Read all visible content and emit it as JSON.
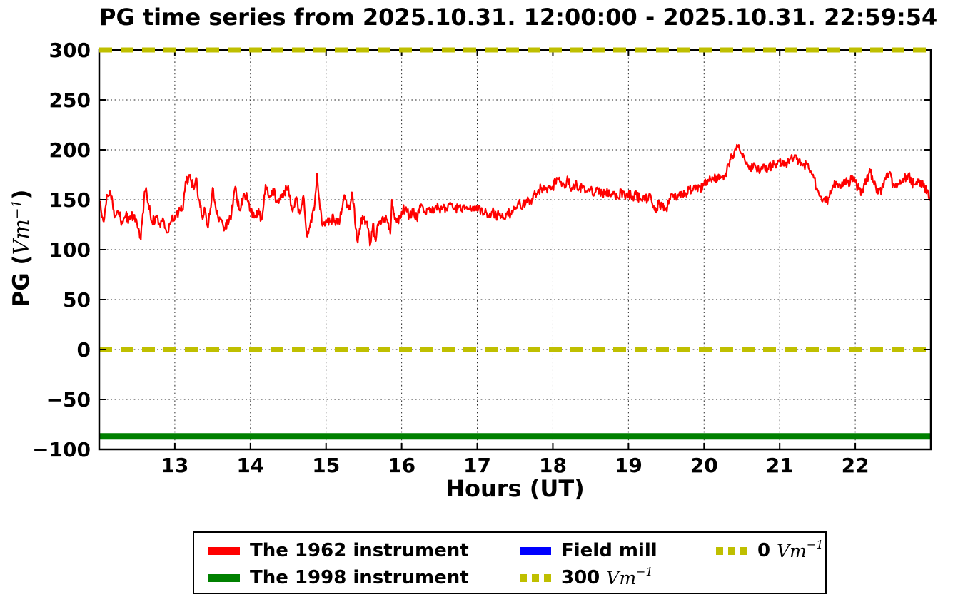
{
  "figure": {
    "title": "PG time series from 2025.10.31. 12:00:00 - 2025.10.31. 22:59:54",
    "background": "#ffffff"
  },
  "axes": {
    "xlabel": "Hours (UT)",
    "ylabel": {
      "prefix": "PG (",
      "unit": "Vm",
      "exponent": "−1",
      "suffix": ")"
    },
    "xticks": {
      "values": [
        13,
        14,
        15,
        16,
        17,
        18,
        19,
        20,
        21,
        22
      ],
      "labels": [
        "13",
        "14",
        "15",
        "16",
        "17",
        "18",
        "19",
        "20",
        "21",
        "22"
      ]
    },
    "yticks": {
      "values": [
        300,
        250,
        200,
        150,
        100,
        50,
        0,
        -50,
        -100
      ],
      "labels": [
        "300",
        "250",
        "200",
        "150",
        "100",
        "50",
        "0",
        "−50",
        "−100"
      ]
    },
    "grid_style": "dotted"
  },
  "legend": {
    "columns": 3,
    "items": [
      {
        "label": "The 1962 instrument",
        "color": "#ff0000",
        "style": "solid"
      },
      {
        "label": "The 1998 instrument",
        "color": "#008000",
        "style": "solid"
      },
      {
        "label": "Field mill",
        "color": "#0000ff",
        "style": "solid"
      },
      {
        "label": "300",
        "unit": "Vm",
        "exponent": "−1",
        "color": "#bfbf00",
        "style": "dashed"
      },
      {
        "label": "0",
        "unit": "Vm",
        "exponent": "−1",
        "color": "#bfbf00",
        "style": "dashed"
      }
    ]
  },
  "chart_data": {
    "type": "line",
    "title": "PG time series from 2025.10.31. 12:00:00 - 2025.10.31. 22:59:54",
    "xlabel": "Hours (UT)",
    "ylabel": "PG (Vm⁻¹)",
    "xlim": [
      12,
      23
    ],
    "ylim": [
      -100,
      300
    ],
    "grid": true,
    "legend_position": "below",
    "series": [
      {
        "name": "The 1962 instrument",
        "color": "#ff0000",
        "style": "solid",
        "linewidth": 2.2,
        "noise_amplitude": 5,
        "x": [
          12.0,
          12.03,
          12.06,
          12.1,
          12.15,
          12.2,
          12.25,
          12.3,
          12.35,
          12.4,
          12.45,
          12.5,
          12.53,
          12.55,
          12.6,
          12.62,
          12.65,
          12.7,
          12.75,
          12.8,
          12.85,
          12.9,
          12.95,
          13.0,
          13.05,
          13.1,
          13.15,
          13.2,
          13.25,
          13.28,
          13.32,
          13.36,
          13.4,
          13.44,
          13.5,
          13.55,
          13.6,
          13.65,
          13.7,
          13.75,
          13.8,
          13.85,
          13.9,
          13.95,
          14.0,
          14.05,
          14.1,
          14.15,
          14.2,
          14.25,
          14.3,
          14.35,
          14.4,
          14.45,
          14.5,
          14.55,
          14.6,
          14.65,
          14.7,
          14.75,
          14.8,
          14.85,
          14.88,
          14.92,
          14.96,
          15.0,
          15.05,
          15.1,
          15.15,
          15.2,
          15.25,
          15.3,
          15.35,
          15.4,
          15.42,
          15.46,
          15.5,
          15.55,
          15.58,
          15.62,
          15.65,
          15.7,
          15.75,
          15.8,
          15.85,
          15.87,
          15.9,
          15.95,
          16.0,
          16.05,
          16.1,
          16.15,
          16.2,
          16.25,
          16.3,
          16.35,
          16.4,
          16.45,
          16.5,
          16.55,
          16.6,
          16.65,
          16.7,
          16.75,
          16.8,
          16.85,
          16.9,
          16.95,
          17.0,
          17.05,
          17.1,
          17.15,
          17.2,
          17.25,
          17.3,
          17.35,
          17.4,
          17.45,
          17.5,
          17.55,
          17.6,
          17.65,
          17.7,
          17.75,
          17.8,
          17.85,
          17.9,
          17.95,
          18.0,
          18.05,
          18.1,
          18.15,
          18.2,
          18.25,
          18.3,
          18.35,
          18.4,
          18.45,
          18.5,
          18.55,
          18.6,
          18.65,
          18.7,
          18.75,
          18.8,
          18.85,
          18.9,
          18.95,
          19.0,
          19.05,
          19.1,
          19.15,
          19.2,
          19.25,
          19.3,
          19.35,
          19.4,
          19.45,
          19.5,
          19.55,
          19.6,
          19.65,
          19.7,
          19.75,
          19.8,
          19.85,
          19.9,
          19.95,
          20.0,
          20.05,
          20.1,
          20.15,
          20.2,
          20.25,
          20.3,
          20.35,
          20.4,
          20.45,
          20.5,
          20.55,
          20.6,
          20.65,
          20.7,
          20.75,
          20.8,
          20.85,
          20.9,
          20.95,
          21.0,
          21.05,
          21.1,
          21.15,
          21.2,
          21.25,
          21.3,
          21.35,
          21.4,
          21.45,
          21.5,
          21.55,
          21.6,
          21.65,
          21.7,
          21.75,
          21.8,
          21.85,
          21.9,
          21.95,
          22.0,
          22.05,
          22.1,
          22.15,
          22.2,
          22.25,
          22.3,
          22.35,
          22.4,
          22.45,
          22.5,
          22.55,
          22.6,
          22.65,
          22.7,
          22.75,
          22.8,
          22.85,
          22.9,
          22.95,
          22.98,
          23.0
        ],
        "y": [
          152,
          136,
          128,
          155,
          157,
          132,
          138,
          128,
          134,
          130,
          135,
          126,
          118,
          110,
          158,
          162,
          146,
          128,
          132,
          126,
          130,
          117,
          128,
          134,
          138,
          140,
          168,
          175,
          160,
          172,
          150,
          134,
          140,
          122,
          162,
          136,
          130,
          119,
          128,
          136,
          163,
          140,
          150,
          157,
          140,
          132,
          138,
          130,
          165,
          152,
          161,
          148,
          155,
          158,
          164,
          140,
          152,
          136,
          154,
          113,
          130,
          145,
          176,
          140,
          125,
          130,
          128,
          132,
          126,
          135,
          154,
          140,
          155,
          120,
          107,
          128,
          132,
          122,
          104,
          126,
          110,
          128,
          133,
          130,
          116,
          150,
          136,
          128,
          138,
          142,
          133,
          138,
          131,
          143,
          138,
          142,
          137,
          144,
          140,
          143,
          139,
          145,
          141,
          143,
          138,
          142,
          140,
          143,
          139,
          141,
          137,
          134,
          138,
          133,
          136,
          132,
          138,
          135,
          140,
          146,
          143,
          150,
          148,
          155,
          158,
          162,
          160,
          164,
          162,
          172,
          168,
          165,
          170,
          162,
          166,
          160,
          164,
          158,
          162,
          156,
          160,
          155,
          158,
          154,
          158,
          153,
          157,
          154,
          156,
          152,
          155,
          151,
          154,
          150,
          152,
          139,
          146,
          143,
          142,
          150,
          155,
          152,
          158,
          156,
          161,
          159,
          164,
          162,
          166,
          170,
          168,
          172,
          170,
          174,
          178,
          190,
          198,
          203,
          196,
          186,
          180,
          183,
          178,
          180,
          184,
          180,
          186,
          182,
          190,
          184,
          187,
          192,
          195,
          188,
          184,
          186,
          177,
          172,
          160,
          153,
          148,
          152,
          163,
          168,
          165,
          170,
          167,
          170,
          168,
          160,
          157,
          170,
          178,
          165,
          156,
          160,
          170,
          177,
          165,
          162,
          166,
          170,
          175,
          167,
          165,
          168,
          163,
          158,
          150,
          158
        ]
      },
      {
        "name": "The 1998 instrument",
        "color": "#008000",
        "style": "solid",
        "linewidth": 9,
        "constant": -87
      },
      {
        "name": "Field mill",
        "color": "#0000ff",
        "style": "solid",
        "linewidth": 7,
        "visible_in_plot": false
      },
      {
        "name": "300 Vm⁻¹",
        "color": "#bfbf00",
        "style": "dashed",
        "linewidth": 7,
        "constant": 300,
        "over_frame": true
      },
      {
        "name": "0 Vm⁻¹",
        "color": "#bfbf00",
        "style": "dashed",
        "linewidth": 7,
        "constant": 0
      }
    ]
  }
}
